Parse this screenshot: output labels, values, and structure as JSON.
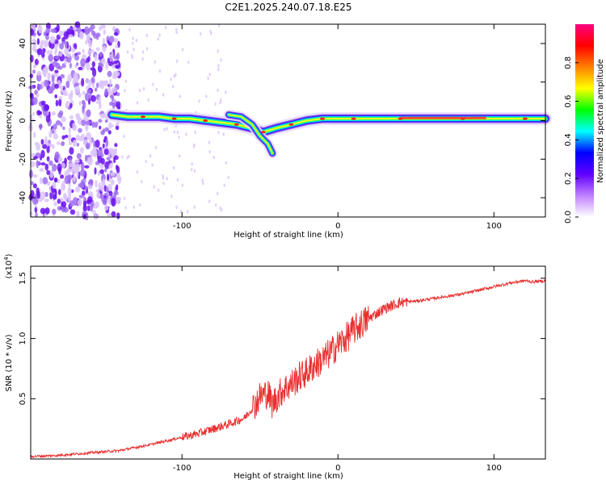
{
  "title": "C2E1.2025.240.07.18.E25",
  "chart_data": [
    {
      "type": "heatmap",
      "name": "spectrogram",
      "xlabel": "Height of straight line (km)",
      "ylabel": "Frequency (Hz)",
      "xlim": [
        -197,
        133
      ],
      "ylim": [
        -50,
        50
      ],
      "xticks": [
        -100,
        0,
        100
      ],
      "xtick_labels": [
        "-100",
        "0",
        "100"
      ],
      "yticks": [
        -40,
        -20,
        0,
        20,
        40
      ],
      "ytick_labels": [
        "-40",
        "-20",
        "0",
        "20",
        "40"
      ],
      "ridge": [
        {
          "x": -145,
          "y": 3
        },
        {
          "x": -135,
          "y": 2
        },
        {
          "x": -125,
          "y": 2
        },
        {
          "x": -115,
          "y": 2
        },
        {
          "x": -105,
          "y": 1
        },
        {
          "x": -95,
          "y": 1
        },
        {
          "x": -85,
          "y": 0
        },
        {
          "x": -75,
          "y": -1
        },
        {
          "x": -65,
          "y": -2
        },
        {
          "x": -55,
          "y": -4
        },
        {
          "x": -48,
          "y": -6
        },
        {
          "x": -40,
          "y": -4
        },
        {
          "x": -30,
          "y": -2
        },
        {
          "x": -20,
          "y": 0
        },
        {
          "x": -10,
          "y": 1
        },
        {
          "x": 0,
          "y": 1
        },
        {
          "x": 10,
          "y": 1
        },
        {
          "x": 20,
          "y": 1
        },
        {
          "x": 40,
          "y": 1
        },
        {
          "x": 60,
          "y": 1
        },
        {
          "x": 80,
          "y": 1
        },
        {
          "x": 100,
          "y": 1
        },
        {
          "x": 120,
          "y": 1
        },
        {
          "x": 133,
          "y": 1
        }
      ],
      "branch": [
        {
          "x": -70,
          "y": 3
        },
        {
          "x": -62,
          "y": 2
        },
        {
          "x": -55,
          "y": -2
        },
        {
          "x": -50,
          "y": -8
        },
        {
          "x": -45,
          "y": -12
        },
        {
          "x": -42,
          "y": -17
        }
      ],
      "noise_region": [
        -197,
        -140
      ]
    },
    {
      "type": "colorbar",
      "name": "colorbar",
      "label": "Normalized spectral amplitude",
      "ticks": [
        0.0,
        0.2,
        0.4,
        0.6,
        0.8
      ],
      "tick_labels": [
        "0.0",
        "0.2",
        "0.4",
        "0.6",
        "0.8"
      ],
      "colors": [
        "#ffffff",
        "#c080ff",
        "#6000ff",
        "#0000ff",
        "#00ffff",
        "#00ff00",
        "#ffff00",
        "#ff8000",
        "#ff0000",
        "#ff0080"
      ]
    },
    {
      "type": "line",
      "name": "snr",
      "xlabel": "Height of straight line (km)",
      "ylabel": "SNR (10 * v/v)",
      "exponent_label": "(x10",
      "exponent_sup": "4",
      "exponent_close": ")",
      "xlim": [
        -197,
        133
      ],
      "ylim": [
        0,
        16000
      ],
      "xticks": [
        -100,
        0,
        100
      ],
      "xtick_labels": [
        "-100",
        "0",
        "100"
      ],
      "yticks": [
        5000,
        10000,
        15000
      ],
      "ytick_labels": [
        "0.5",
        "1.0",
        "1.5"
      ],
      "color": "#e83030",
      "x": [
        -197,
        -180,
        -160,
        -140,
        -120,
        -100,
        -90,
        -80,
        -70,
        -60,
        -55,
        -50,
        -45,
        -42,
        -40,
        -35,
        -30,
        -25,
        -20,
        -15,
        -10,
        -5,
        0,
        5,
        10,
        15,
        20,
        30,
        40,
        50,
        60,
        70,
        80,
        90,
        100,
        110,
        120,
        125,
        133
      ],
      "y": [
        200,
        300,
        500,
        700,
        1200,
        1800,
        2100,
        2500,
        2900,
        3400,
        4200,
        5200,
        5500,
        4500,
        5000,
        5800,
        6200,
        6800,
        7200,
        7800,
        8200,
        8800,
        9500,
        10000,
        10700,
        11200,
        11700,
        12500,
        13000,
        13100,
        13300,
        13500,
        13700,
        14000,
        14300,
        14600,
        14800,
        14700,
        14800
      ]
    }
  ]
}
